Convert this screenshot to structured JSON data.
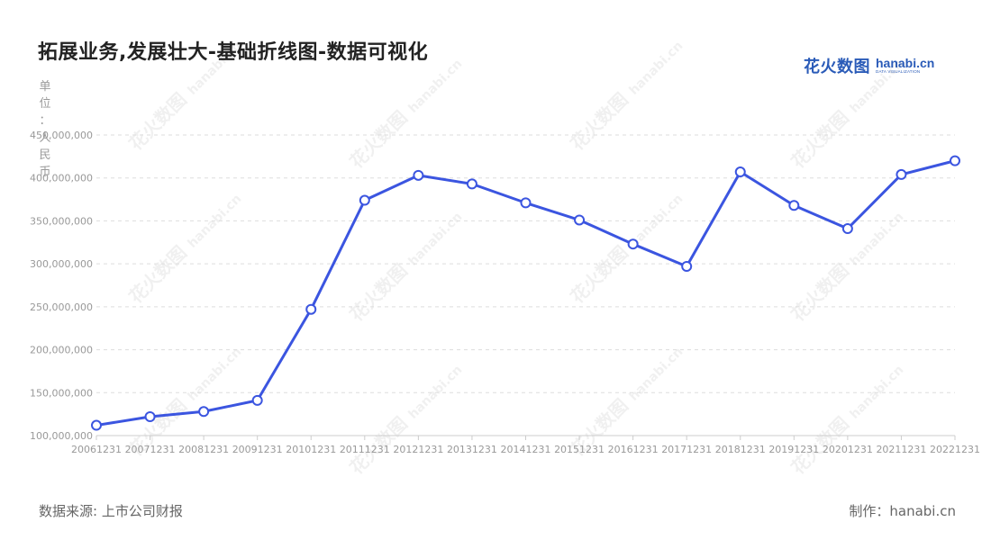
{
  "title": "拓展业务,发展壮大-基础折线图-数据可视化",
  "brand": {
    "cn": "花火数图",
    "en": "hanabi.cn",
    "sub": "DATA VISUALIZATION"
  },
  "footer": {
    "source": "数据来源: 上市公司财报",
    "credit": "制作：hanabi.cn"
  },
  "chart_data": {
    "type": "line",
    "ylabel": "单位：人民币",
    "ylim": [
      100000000,
      450000000
    ],
    "yticks": [
      100000000,
      150000000,
      200000000,
      250000000,
      300000000,
      350000000,
      400000000,
      450000000
    ],
    "ytick_labels": [
      "100,000,000",
      "150,000,000",
      "200,000,000",
      "250,000,000",
      "300,000,000",
      "350,000,000",
      "400,000,000",
      "450,000,000"
    ],
    "categories": [
      "20061231",
      "20071231",
      "20081231",
      "20091231",
      "20101231",
      "20111231",
      "20121231",
      "20131231",
      "20141231",
      "20151231",
      "20161231",
      "20171231",
      "20181231",
      "20191231",
      "20201231",
      "20211231",
      "20221231"
    ],
    "series": [
      {
        "values": [
          112000000,
          122000000,
          128000000,
          141000000,
          247000000,
          374000000,
          403000000,
          393000000,
          371000000,
          351000000,
          323000000,
          297000000,
          407000000,
          368000000,
          341000000,
          404000000,
          420000000
        ]
      }
    ],
    "grid": true,
    "colors": {
      "line": "#3b55e0",
      "marker_fill": "#ffffff",
      "grid": "#dddddd",
      "axis_text": "#999999"
    }
  }
}
